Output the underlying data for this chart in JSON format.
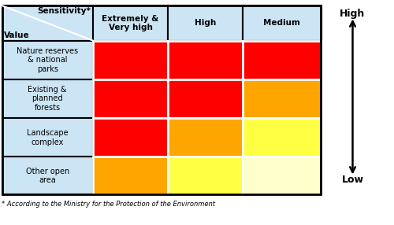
{
  "rows": [
    "Nature reserves\n& national\nparks",
    "Existing &\nplanned\nforests",
    "Landscape\ncomplex",
    "Other open\narea"
  ],
  "cols": [
    "Extremely &\nVery high",
    "High",
    "Medium"
  ],
  "header_bg": "#cce5f5",
  "cell_colors": [
    [
      "#ff0000",
      "#ff0000",
      "#ff0000"
    ],
    [
      "#ff0000",
      "#ff0000",
      "#ffa500"
    ],
    [
      "#ff0000",
      "#ffa500",
      "#ffff44"
    ],
    [
      "#ffa500",
      "#ffff44",
      "#ffffcc"
    ]
  ],
  "title_row_text": "Sensitivity*",
  "title_col_text": "Value",
  "footnote": "* According to the Ministry for the Protection of the Environment",
  "arrow_label_high": "High",
  "arrow_label_low": "Low",
  "border_color": "#ffffff",
  "outer_border_color": "#000000",
  "figsize": [
    5.0,
    2.86
  ],
  "dpi": 100
}
